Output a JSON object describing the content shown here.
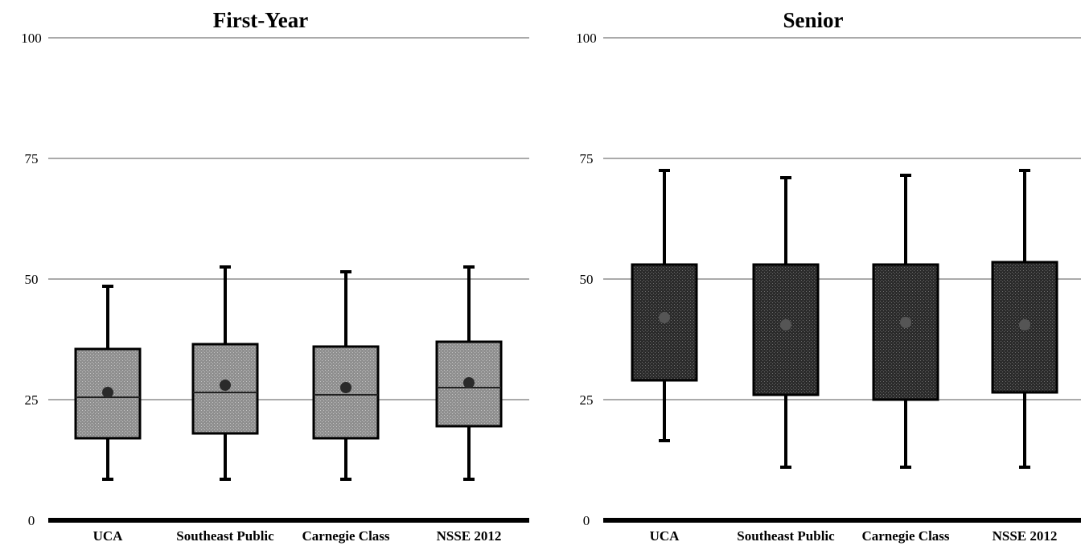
{
  "chart_data": [
    {
      "type": "boxplot",
      "title": "First-Year",
      "ylim": [
        0,
        100
      ],
      "yticks": [
        "0",
        "25",
        "50",
        "75",
        "100"
      ],
      "grid": true,
      "categories": [
        "UCA",
        "Southeast Public",
        "Carnegie Class",
        "NSSE 2012"
      ],
      "boxes": [
        {
          "whisker_low": 8.5,
          "q1": 17,
          "median": 25.5,
          "q3": 35.5,
          "whisker_high": 48.5,
          "mean": 26.5
        },
        {
          "whisker_low": 8.5,
          "q1": 18,
          "median": 26.5,
          "q3": 36.5,
          "whisker_high": 52.5,
          "mean": 28
        },
        {
          "whisker_low": 8.5,
          "q1": 17,
          "median": 26,
          "q3": 36,
          "whisker_high": 51.5,
          "mean": 27.5
        },
        {
          "whisker_low": 8.5,
          "q1": 19.5,
          "median": 27.5,
          "q3": 37,
          "whisker_high": 52.5,
          "mean": 28.5
        }
      ],
      "box_color": "#8f8f8f"
    },
    {
      "type": "boxplot",
      "title": "Senior",
      "ylim": [
        0,
        100
      ],
      "yticks": [
        "0",
        "25",
        "50",
        "75",
        "100"
      ],
      "grid": true,
      "categories": [
        "UCA",
        "Southeast Public",
        "Carnegie Class",
        "NSSE 2012"
      ],
      "boxes": [
        {
          "whisker_low": 16.5,
          "q1": 29,
          "median": 29,
          "q3": 53,
          "whisker_high": 72.5,
          "mean": 42
        },
        {
          "whisker_low": 11,
          "q1": 26,
          "median": 26,
          "q3": 53,
          "whisker_high": 71,
          "mean": 40.5
        },
        {
          "whisker_low": 11,
          "q1": 25,
          "median": 25,
          "q3": 53,
          "whisker_high": 71.5,
          "mean": 41
        },
        {
          "whisker_low": 11,
          "q1": 26.5,
          "median": 26.5,
          "q3": 53.5,
          "whisker_high": 72.5,
          "mean": 40.5
        }
      ],
      "box_color": "#2b2b2b"
    }
  ]
}
